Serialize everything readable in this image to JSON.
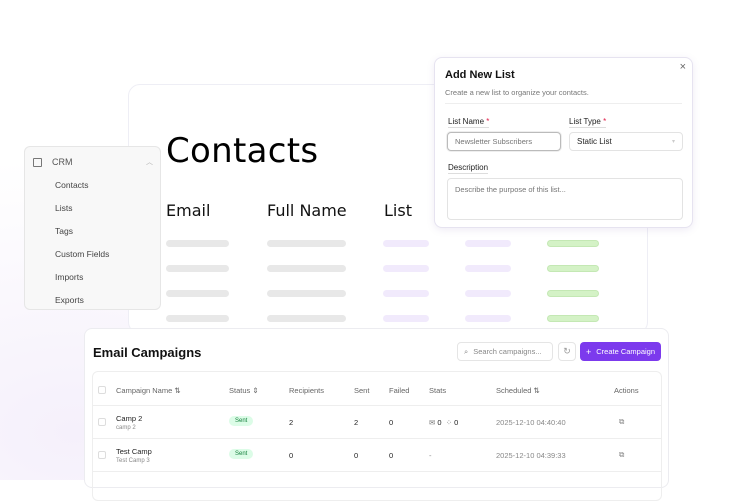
{
  "contacts": {
    "title": "Contacts",
    "columns": [
      "Email",
      "Full Name",
      "List"
    ]
  },
  "sidebar": {
    "section": "CRM",
    "section_icon": "contact-card-icon",
    "items": [
      "Contacts",
      "Lists",
      "Tags",
      "Custom Fields",
      "Imports",
      "Exports"
    ]
  },
  "dialog": {
    "title": "Add New List",
    "subtitle": "Create a new list to organize your contacts.",
    "list_name_label": "List Name",
    "list_name_placeholder": "Newsletter Subscribers",
    "list_type_label": "List Type",
    "list_type_value": "Static List",
    "description_label": "Description",
    "description_placeholder": "Describe the purpose of this list...",
    "required_mark": "*",
    "close": "×"
  },
  "campaigns": {
    "title": "Email Campaigns",
    "search_placeholder": "Search campaigns...",
    "create_label": "Create Campaign",
    "accent": "#7c3aed",
    "headers": [
      "Campaign Name",
      "Status",
      "Recipients",
      "Sent",
      "Failed",
      "Stats",
      "Scheduled",
      "Actions"
    ],
    "rows": [
      {
        "name": "Camp 2",
        "sub": "camp 2",
        "status": "Sent",
        "recipients": "2",
        "sent": "2",
        "failed": "0",
        "opens": "0",
        "clicks": "0",
        "stats": "",
        "scheduled": "2025-12-10 04:40:40"
      },
      {
        "name": "Test Camp",
        "sub": "Test Camp 3",
        "status": "Sent",
        "recipients": "0",
        "sent": "0",
        "failed": "0",
        "stats": "-",
        "scheduled": "2025-12-10 04:39:33"
      }
    ]
  }
}
